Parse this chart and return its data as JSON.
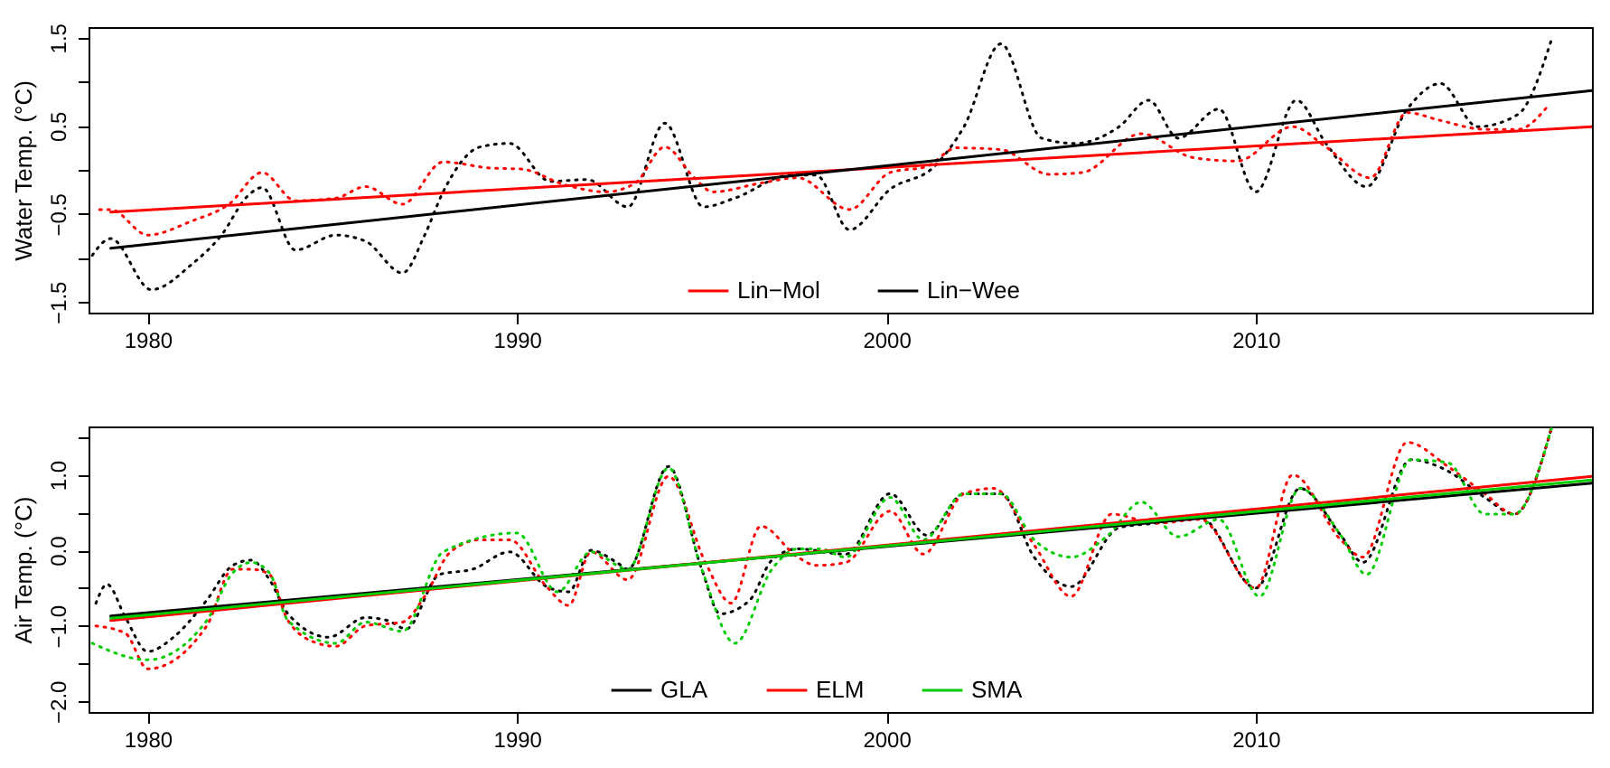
{
  "chart_data": [
    {
      "type": "line",
      "ylabel": "Water Temp. (°C)",
      "xlim": [
        1978.4,
        2019.1
      ],
      "xticks": [
        1980,
        1990,
        2000,
        2010
      ],
      "ylim": [
        -1.62,
        1.62
      ],
      "yticks": [
        {
          "value": -1.5,
          "label": "−1.5"
        },
        {
          "value": -1,
          "label": null
        },
        {
          "value": -0.5,
          "label": "−0.5"
        },
        {
          "value": 0,
          "label": null
        },
        {
          "value": 0.5,
          "label": "0.5"
        },
        {
          "value": 1,
          "label": null
        },
        {
          "value": 1.5,
          "label": "1.5"
        }
      ],
      "legend": "bottom",
      "series": [
        {
          "color": "#000000",
          "line_style": "dotted",
          "x": [
            1978.5,
            1979,
            1980.1,
            1981.2,
            1982,
            1982.7,
            1983.1,
            1984,
            1985.1,
            1985.9,
            1986.9,
            1987.5,
            1988,
            1989,
            1989.8,
            1990.9,
            1991.9,
            1993,
            1994,
            1995.05,
            1995.9,
            1997.4,
            1998.1,
            1999,
            2000.1,
            2001.3,
            2002.1,
            2003.1,
            2004.2,
            2005.1,
            2006.3,
            2007.1,
            2007.9,
            2009,
            2010,
            2011.1,
            2011.9,
            2013,
            2014.1,
            2015,
            2016,
            2017.1,
            2018
          ],
          "values": [
            -0.97,
            -0.78,
            -1.36,
            -1.07,
            -0.74,
            -0.3,
            -0.2,
            -0.91,
            -0.74,
            -0.81,
            -1.17,
            -0.74,
            -0.25,
            0.26,
            0.3,
            -0.13,
            -0.11,
            -0.42,
            0.53,
            -0.42,
            -0.32,
            -0.06,
            -0.06,
            -0.68,
            -0.22,
            0.04,
            0.49,
            1.43,
            0.36,
            0.3,
            0.49,
            0.79,
            0.36,
            0.69,
            -0.25,
            0.79,
            0.3,
            -0.19,
            0.69,
            0.98,
            0.49,
            0.63,
            1.47
          ]
        },
        {
          "color": "#ff0000",
          "line_style": "dotted",
          "x": [
            1978.7,
            1979,
            1980,
            1981.2,
            1982.2,
            1983.1,
            1984,
            1985.1,
            1985.9,
            1986.9,
            1988,
            1989.3,
            1990.1,
            1991.3,
            1992.4,
            1993.2,
            1994,
            1994.8,
            1995.3,
            1996.6,
            1997.6,
            1999,
            2000.1,
            2001.1,
            2001.9,
            2003.1,
            2004.4,
            2005.3,
            2006.9,
            2008.3,
            2009.5,
            2011,
            2011.9,
            2013.1,
            2014.1,
            2015,
            2016.2,
            2017.1,
            2017.9
          ],
          "values": [
            -0.45,
            -0.45,
            -0.74,
            -0.58,
            -0.39,
            -0.03,
            -0.35,
            -0.32,
            -0.19,
            -0.39,
            0.09,
            0.02,
            0.01,
            -0.17,
            -0.25,
            -0.15,
            0.26,
            -0.09,
            -0.25,
            -0.15,
            -0.09,
            -0.45,
            -0.03,
            0.04,
            0.25,
            0.23,
            -0.05,
            -0.03,
            0.41,
            0.14,
            0.1,
            0.49,
            0.26,
            -0.09,
            0.65,
            0.56,
            0.46,
            0.46,
            0.72
          ]
        },
        {
          "name": "Lin−Mol",
          "color": "#ff0000",
          "line_style": "solid",
          "x": [
            1979,
            2019.1
          ],
          "values": [
            -0.48,
            0.49
          ]
        },
        {
          "name": "Lin−Wee",
          "color": "#000000",
          "line_style": "solid",
          "x": [
            1979,
            2019.1
          ],
          "values": [
            -0.89,
            0.9
          ]
        }
      ]
    },
    {
      "type": "line",
      "ylabel": "Air Temp. (°C)",
      "xlim": [
        1978.4,
        2019.1
      ],
      "xticks": [
        1980,
        1990,
        2000,
        2010
      ],
      "ylim": [
        -2.14,
        1.64
      ],
      "yticks": [
        {
          "value": -2,
          "label": "−2.0"
        },
        {
          "value": -1.5,
          "label": null
        },
        {
          "value": -1,
          "label": "−1.0"
        },
        {
          "value": -0.5,
          "label": null
        },
        {
          "value": 0,
          "label": "0.0"
        },
        {
          "value": 0.5,
          "label": null
        },
        {
          "value": 1,
          "label": "1.0"
        },
        {
          "value": 1.5,
          "label": null
        }
      ],
      "legend": "bottom",
      "series": [
        {
          "color": "#000000",
          "line_style": "dotted",
          "x": [
            1978.6,
            1978.9,
            1979.4,
            1980,
            1980.7,
            1981.6,
            1982.3,
            1982.8,
            1983.3,
            1983.8,
            1984.9,
            1985.9,
            1986.5,
            1987,
            1987.9,
            1988.8,
            1989.8,
            1990.8,
            1991.4,
            1992,
            1992.7,
            1993,
            1994.1,
            1995,
            1995.5,
            1996.3,
            1996.9,
            1997.6,
            1998.9,
            2000.1,
            2001.1,
            2002.1,
            2003.1,
            2004,
            2005,
            2006.3,
            2007.3,
            2008.5,
            2010,
            2011.2,
            2012.3,
            2012.9,
            2014.2,
            2015.2,
            2016.2,
            2017,
            2018
          ],
          "values": [
            -0.7,
            -0.45,
            -0.89,
            -1.34,
            -1.15,
            -0.66,
            -0.2,
            -0.13,
            -0.39,
            -0.84,
            -1.15,
            -0.89,
            -0.93,
            -1.04,
            -0.32,
            -0.25,
            -0.02,
            -0.48,
            -0.55,
            0,
            -0.16,
            -0.25,
            1.11,
            -0.25,
            -0.84,
            -0.66,
            -0.13,
            0.02,
            -0.05,
            0.75,
            0.2,
            0.75,
            0.75,
            -0.09,
            -0.48,
            0.3,
            0.36,
            0.43,
            -0.5,
            0.82,
            0.2,
            -0.16,
            1.2,
            1.05,
            0.7,
            0.48,
            1.61
          ]
        },
        {
          "color": "#ff0000",
          "line_style": "dotted",
          "x": [
            1978.6,
            1979.4,
            1980,
            1981.6,
            1982.3,
            1982.8,
            1983.3,
            1983.8,
            1984.6,
            1985.1,
            1985.9,
            1986.9,
            1987.5,
            1988.2,
            1989,
            1989.8,
            1990.8,
            1991.4,
            1992,
            1993,
            1994.1,
            1995.1,
            1995.8,
            1996.6,
            1997.6,
            1998.1,
            1998.9,
            2000.1,
            2001,
            2002.1,
            2002.9,
            2004,
            2005,
            2006.1,
            2007.3,
            2008.5,
            2010,
            2011,
            2012.3,
            2012.9,
            2014.1,
            2015.2,
            2016.2,
            2017,
            2018
          ],
          "values": [
            -1,
            -1.1,
            -1.57,
            -1,
            -0.25,
            -0.25,
            -0.32,
            -0.93,
            -1.23,
            -1.27,
            -1,
            -0.95,
            -0.61,
            -0.02,
            0.14,
            0.14,
            -0.48,
            -0.73,
            -0.02,
            -0.39,
            0.98,
            -0.16,
            -0.7,
            0.32,
            -0.09,
            -0.2,
            -0.16,
            0.52,
            -0.05,
            0.75,
            0.82,
            0.07,
            -0.61,
            0.48,
            0.36,
            0.41,
            -0.5,
            1,
            0.14,
            -0.09,
            1.43,
            1.11,
            0.75,
            0.48,
            1.61
          ]
        },
        {
          "color": "#00cc00",
          "line_style": "dotted",
          "x": [
            1978.5,
            1980,
            1981.6,
            1982.3,
            1982.8,
            1983.3,
            1983.8,
            1985.1,
            1985.9,
            1986.9,
            1988,
            1990,
            1991.1,
            1992,
            1993,
            1994.1,
            1995,
            1995.9,
            1996.9,
            1997.6,
            1998.2,
            1998.9,
            2000.1,
            2001,
            2002.1,
            2003.1,
            2004,
            2005,
            2006,
            2006.9,
            2007.9,
            2009,
            2010.1,
            2011.2,
            2012.3,
            2013,
            2014.2,
            2015.2,
            2016.2,
            2017,
            2018
          ],
          "values": [
            -1.23,
            -1.45,
            -0.93,
            -0.3,
            -0.16,
            -0.3,
            -0.93,
            -1.23,
            -0.95,
            -1.07,
            -0.02,
            0.23,
            -0.55,
            -0.02,
            -0.25,
            1.09,
            -0.25,
            -1.23,
            -0.25,
            0.02,
            0.02,
            -0.09,
            0.7,
            0.14,
            0.75,
            0.75,
            0.14,
            -0.09,
            0.2,
            0.64,
            0.18,
            0.41,
            -0.61,
            0.82,
            0.2,
            -0.32,
            1.2,
            1.16,
            0.48,
            0.48,
            1.61
          ]
        },
        {
          "name": "GLA",
          "color": "#000000",
          "line_style": "solid",
          "x": [
            1979,
            2019.1
          ],
          "values": [
            -0.87,
            0.89
          ]
        },
        {
          "name": "ELM",
          "color": "#ff0000",
          "line_style": "solid",
          "x": [
            1979,
            2019.1
          ],
          "values": [
            -0.93,
            0.98
          ]
        },
        {
          "name": "SMA",
          "color": "#00cc00",
          "line_style": "solid",
          "x": [
            1979,
            2019.1
          ],
          "values": [
            -0.9,
            0.93
          ]
        }
      ]
    }
  ]
}
